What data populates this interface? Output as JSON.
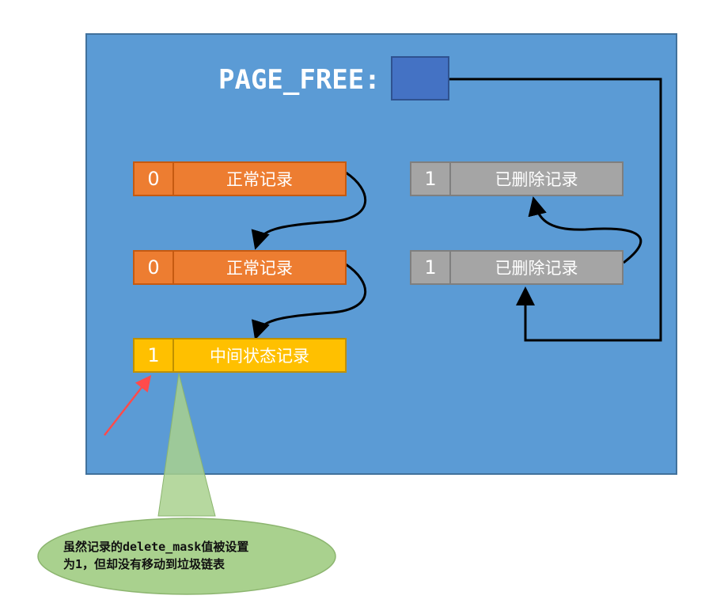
{
  "pointer": {
    "label": "PAGE_FREE:"
  },
  "normal_records": [
    {
      "flag": "0",
      "label": "正常记录"
    },
    {
      "flag": "0",
      "label": "正常记录"
    }
  ],
  "intermediate_record": {
    "flag": "1",
    "label": "中间状态记录"
  },
  "deleted_records": [
    {
      "flag": "1",
      "label": "已删除记录"
    },
    {
      "flag": "1",
      "label": "已删除记录"
    }
  ],
  "callout": {
    "line1": "虽然记录的delete_mask值被设置",
    "line2": "为1，但却没有移动到垃圾链表"
  },
  "colors": {
    "page_bg": "#5b9bd5",
    "normal": "#ed7d31",
    "deleted": "#a5a5a5",
    "intermediate": "#ffc000",
    "callout": "#a9d18e",
    "highlight_arrow": "#ff4b4b"
  }
}
